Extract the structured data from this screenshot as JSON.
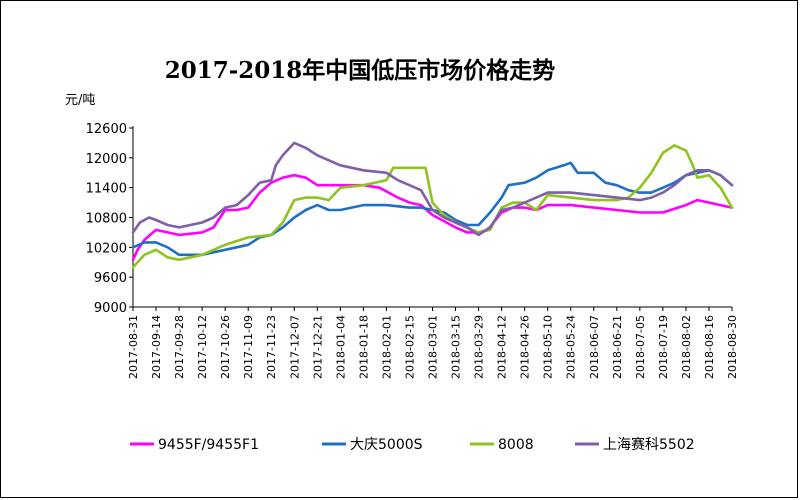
{
  "chart_data": {
    "type": "line",
    "title": "2017-2018年中国低压市场价格走势",
    "yunit": "元/吨",
    "ylim": [
      9000,
      12600
    ],
    "yticks": [
      9000,
      9600,
      10200,
      10800,
      11400,
      12000,
      12600
    ],
    "grid": false,
    "legend_position": "bottom",
    "xticks": [
      "2017-08-31",
      "2017-09-14",
      "2017-09-28",
      "2017-10-12",
      "2017-10-26",
      "2017-11-09",
      "2017-11-23",
      "2017-12-07",
      "2017-12-21",
      "2018-01-04",
      "2018-01-18",
      "2018-02-01",
      "2018-02-15",
      "2018-03-01",
      "2018-03-15",
      "2018-03-29",
      "2018-04-12",
      "2018-04-26",
      "2018-05-10",
      "2018-05-24",
      "2018-06-07",
      "2018-06-21",
      "2018-07-05",
      "2018-07-19",
      "2018-08-02",
      "2018-08-16",
      "2018-08-30"
    ],
    "x_index_max": 26,
    "series": [
      {
        "name": "9455F/9455F1",
        "color": "#ff00ff",
        "points": [
          [
            0,
            9950
          ],
          [
            0.2,
            10150
          ],
          [
            0.5,
            10350
          ],
          [
            1,
            10550
          ],
          [
            1.5,
            10500
          ],
          [
            2,
            10450
          ],
          [
            3,
            10500
          ],
          [
            3.5,
            10600
          ],
          [
            4,
            10950
          ],
          [
            4.5,
            10950
          ],
          [
            5,
            11000
          ],
          [
            5.5,
            11300
          ],
          [
            6,
            11500
          ],
          [
            6.5,
            11600
          ],
          [
            7,
            11650
          ],
          [
            7.5,
            11600
          ],
          [
            8,
            11450
          ],
          [
            9,
            11450
          ],
          [
            10,
            11450
          ],
          [
            10.7,
            11400
          ],
          [
            11.5,
            11200
          ],
          [
            12,
            11100
          ],
          [
            12.5,
            11050
          ],
          [
            13,
            10850
          ],
          [
            14,
            10600
          ],
          [
            14.5,
            10500
          ],
          [
            15,
            10500
          ],
          [
            15.4,
            10550
          ],
          [
            16,
            10900
          ],
          [
            16.5,
            11000
          ],
          [
            17,
            11000
          ],
          [
            17.5,
            10950
          ],
          [
            18,
            11050
          ],
          [
            19,
            11050
          ],
          [
            20,
            11000
          ],
          [
            21,
            10950
          ],
          [
            22,
            10900
          ],
          [
            23,
            10900
          ],
          [
            24,
            11050
          ],
          [
            24.5,
            11150
          ],
          [
            25,
            11100
          ],
          [
            25.5,
            11050
          ],
          [
            26,
            11000
          ]
        ]
      },
      {
        "name": "大庆5000S",
        "color": "#1f6fc4",
        "points": [
          [
            0,
            10200
          ],
          [
            0.5,
            10300
          ],
          [
            1,
            10300
          ],
          [
            1.5,
            10200
          ],
          [
            2,
            10050
          ],
          [
            3,
            10050
          ],
          [
            4,
            10150
          ],
          [
            5,
            10250
          ],
          [
            5.5,
            10400
          ],
          [
            6,
            10450
          ],
          [
            6.5,
            10600
          ],
          [
            7,
            10800
          ],
          [
            7.5,
            10950
          ],
          [
            8,
            11050
          ],
          [
            8.5,
            10950
          ],
          [
            9,
            10950
          ],
          [
            10,
            11050
          ],
          [
            11,
            11050
          ],
          [
            12,
            11000
          ],
          [
            12.5,
            11000
          ],
          [
            13,
            10950
          ],
          [
            13.5,
            10900
          ],
          [
            14,
            10750
          ],
          [
            14.5,
            10650
          ],
          [
            15,
            10650
          ],
          [
            15.5,
            10900
          ],
          [
            16,
            11200
          ],
          [
            16.3,
            11450
          ],
          [
            17,
            11500
          ],
          [
            17.5,
            11600
          ],
          [
            18,
            11750
          ],
          [
            18.7,
            11850
          ],
          [
            19,
            11900
          ],
          [
            19.3,
            11700
          ],
          [
            20,
            11700
          ],
          [
            20.5,
            11500
          ],
          [
            21,
            11450
          ],
          [
            21.5,
            11350
          ],
          [
            22,
            11300
          ],
          [
            22.5,
            11300
          ],
          [
            23,
            11400
          ],
          [
            23.5,
            11500
          ],
          [
            24,
            11650
          ],
          [
            24.5,
            11700
          ],
          [
            25,
            11750
          ],
          [
            25.5,
            11650
          ],
          [
            26,
            11450
          ]
        ]
      },
      {
        "name": "8008",
        "color": "#8fc31f",
        "points": [
          [
            0,
            9800
          ],
          [
            0.5,
            10050
          ],
          [
            1,
            10150
          ],
          [
            1.5,
            10000
          ],
          [
            2,
            9950
          ],
          [
            3,
            10050
          ],
          [
            4,
            10250
          ],
          [
            5,
            10400
          ],
          [
            6,
            10450
          ],
          [
            6.5,
            10700
          ],
          [
            7,
            11150
          ],
          [
            7.5,
            11200
          ],
          [
            8,
            11200
          ],
          [
            8.5,
            11150
          ],
          [
            9,
            11400
          ],
          [
            10,
            11450
          ],
          [
            11,
            11550
          ],
          [
            11.3,
            11800
          ],
          [
            12,
            11800
          ],
          [
            12.7,
            11800
          ],
          [
            13,
            11100
          ],
          [
            13.5,
            10850
          ],
          [
            14,
            10700
          ],
          [
            14.5,
            10600
          ],
          [
            15,
            10500
          ],
          [
            15.5,
            10550
          ],
          [
            16,
            11000
          ],
          [
            16.5,
            11100
          ],
          [
            17,
            11100
          ],
          [
            17.5,
            10950
          ],
          [
            18,
            11250
          ],
          [
            19,
            11200
          ],
          [
            20,
            11150
          ],
          [
            21,
            11150
          ],
          [
            21.5,
            11200
          ],
          [
            22,
            11400
          ],
          [
            22.5,
            11700
          ],
          [
            23,
            12100
          ],
          [
            23.5,
            12250
          ],
          [
            24,
            12150
          ],
          [
            24.3,
            11850
          ],
          [
            24.5,
            11600
          ],
          [
            25,
            11650
          ],
          [
            25.5,
            11400
          ],
          [
            26,
            11000
          ]
        ]
      },
      {
        "name": "上海赛科5502",
        "color": "#7f5fa8",
        "points": [
          [
            0,
            10500
          ],
          [
            0.3,
            10700
          ],
          [
            0.7,
            10800
          ],
          [
            1,
            10750
          ],
          [
            1.5,
            10650
          ],
          [
            2,
            10600
          ],
          [
            3,
            10700
          ],
          [
            3.5,
            10800
          ],
          [
            4,
            11000
          ],
          [
            4.5,
            11050
          ],
          [
            5,
            11250
          ],
          [
            5.5,
            11500
          ],
          [
            6,
            11550
          ],
          [
            6.2,
            11850
          ],
          [
            6.5,
            12050
          ],
          [
            7,
            12300
          ],
          [
            7.5,
            12200
          ],
          [
            8,
            12050
          ],
          [
            8.5,
            11950
          ],
          [
            9,
            11850
          ],
          [
            9.5,
            11800
          ],
          [
            10,
            11750
          ],
          [
            11,
            11700
          ],
          [
            11.5,
            11550
          ],
          [
            12,
            11450
          ],
          [
            12.5,
            11350
          ],
          [
            13,
            10950
          ],
          [
            13.5,
            10800
          ],
          [
            14,
            10700
          ],
          [
            14.5,
            10600
          ],
          [
            15,
            10450
          ],
          [
            15.5,
            10600
          ],
          [
            16,
            10950
          ],
          [
            16.5,
            11000
          ],
          [
            17,
            11100
          ],
          [
            17.5,
            11200
          ],
          [
            18,
            11300
          ],
          [
            19,
            11300
          ],
          [
            20,
            11250
          ],
          [
            21,
            11200
          ],
          [
            22,
            11150
          ],
          [
            22.5,
            11200
          ],
          [
            23,
            11300
          ],
          [
            23.5,
            11450
          ],
          [
            24,
            11650
          ],
          [
            24.5,
            11750
          ],
          [
            25,
            11750
          ],
          [
            25.5,
            11650
          ],
          [
            26,
            11450
          ]
        ]
      }
    ]
  }
}
